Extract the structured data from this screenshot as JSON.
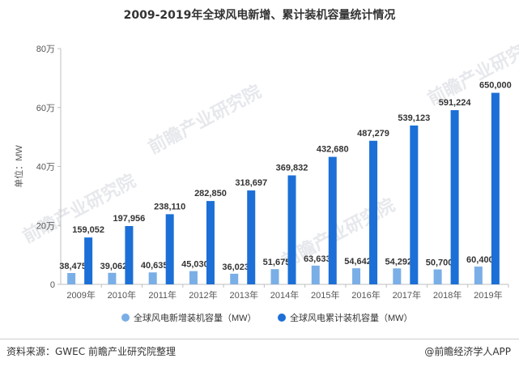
{
  "page": {
    "title": "2009-2019年全球风电新增、累计装机容量统计情况",
    "source": "资料来源：GWEC 前瞻产业研究院整理",
    "brand": "@前瞻经济学人APP",
    "watermark": "前瞻产业研究院"
  },
  "chart_data": {
    "type": "bar",
    "title": "2009-2019年全球风电新增、累计装机容量统计情况",
    "ylabel": "单位：MW",
    "ylim": [
      0,
      800000
    ],
    "yticks": [
      0,
      200000,
      400000,
      600000,
      800000
    ],
    "ytick_labels": [
      "0",
      "20万",
      "40万",
      "60万",
      "80万"
    ],
    "categories": [
      "2009年",
      "2010年",
      "2011年",
      "2012年",
      "2013年",
      "2014年",
      "2015年",
      "2016年",
      "2017年",
      "2018年",
      "2019年"
    ],
    "series": [
      {
        "name": "全球风电新增装机容量（MW）",
        "color": "#7aaee6",
        "values": [
          38475,
          39062,
          40635,
          45030,
          36023,
          51675,
          63633,
          54642,
          54292,
          50700,
          60400
        ],
        "labels": [
          "38,475",
          "39,062",
          "40,635",
          "45,030",
          "36,023",
          "51,675",
          "63,633",
          "54,642",
          "54,292",
          "50,700",
          "60,400"
        ]
      },
      {
        "name": "全球风电累计装机容量（MW）",
        "color": "#1c6fd6",
        "values": [
          159052,
          197956,
          238110,
          282850,
          318697,
          369832,
          432680,
          487279,
          539123,
          591224,
          650000
        ],
        "labels": [
          "159,052",
          "197,956",
          "238,110",
          "282,850",
          "318,697",
          "369,832",
          "432,680",
          "487,279",
          "539,123",
          "591,224",
          "650,000"
        ]
      }
    ],
    "grid": false,
    "legend": "bottom"
  }
}
